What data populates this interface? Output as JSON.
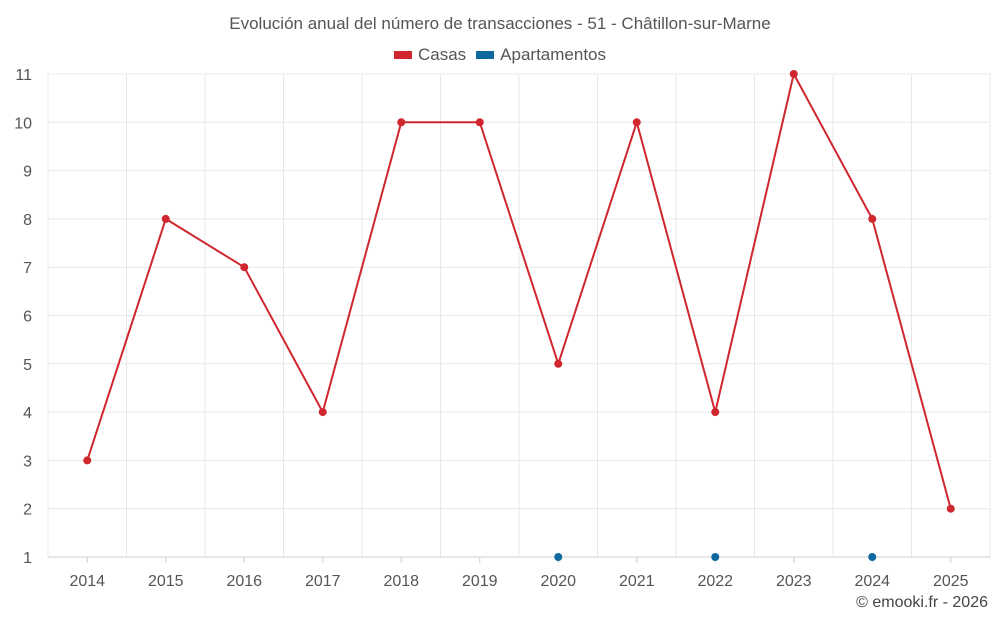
{
  "chart_data": {
    "type": "line",
    "title": "Evolución anual del número de transacciones - 51 - Châtillon-sur-Marne",
    "categories": [
      "2014",
      "2015",
      "2016",
      "2017",
      "2018",
      "2019",
      "2020",
      "2021",
      "2022",
      "2023",
      "2024",
      "2025"
    ],
    "y_ticks": [
      "1",
      "2",
      "3",
      "4",
      "5",
      "6",
      "7",
      "8",
      "9",
      "10",
      "11"
    ],
    "ylim": [
      1,
      11
    ],
    "grid": true,
    "legend_position": "top-center",
    "series": [
      {
        "name": "Casas",
        "color": "#d0262d",
        "line": true,
        "values": [
          3,
          8,
          7,
          4,
          10,
          10,
          5,
          10,
          4,
          11,
          8,
          2
        ]
      },
      {
        "name": "Apartamentos",
        "color": "#0e6a9e",
        "line": false,
        "values": [
          null,
          null,
          null,
          null,
          null,
          null,
          1,
          null,
          1,
          null,
          1,
          null
        ]
      }
    ]
  },
  "footer": "© emooki.fr - 2026"
}
